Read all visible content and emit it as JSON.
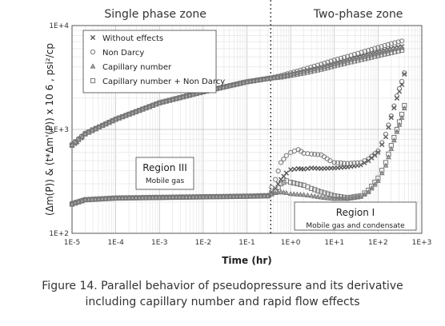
{
  "chart_data": {
    "type": "scatter",
    "xscale": "log",
    "yscale": "log",
    "xlim": [
      1e-05,
      1000
    ],
    "ylim": [
      100,
      10000
    ],
    "xlabel": "Time (hr)",
    "ylabel": "(Δm(P)) & (t*Δm'(P)) x 10 6 , psi²/cp",
    "x_ticks": [
      "1E-5",
      "1E-4",
      "1E-3",
      "1E-2",
      "1E-1",
      "1E+0",
      "1E+1",
      "1E+2",
      "1E+3"
    ],
    "y_ticks": [
      "1E+2",
      "1E+3",
      "1E+4"
    ],
    "grid": true,
    "legend_position": "top-left",
    "divider_x": 0.35,
    "zones": [
      "Single phase zone",
      "Two-phase zone"
    ],
    "annotations": [
      {
        "title": "Region III",
        "text": "Mobile gas"
      },
      {
        "title": "Region I",
        "text": "Mobile gas and condensate"
      }
    ],
    "series": [
      {
        "name": "Without effects",
        "marker": "x",
        "pressure": [
          [
            1e-05,
            700
          ],
          [
            1.3e-05,
            760
          ],
          [
            2e-05,
            900
          ],
          [
            3e-05,
            1000
          ],
          [
            5e-05,
            1090
          ],
          [
            0.0001,
            1250
          ],
          [
            0.0002,
            1400
          ],
          [
            0.0005,
            1620
          ],
          [
            0.001,
            1800
          ],
          [
            0.002,
            1950
          ],
          [
            0.005,
            2150
          ],
          [
            0.01,
            2300
          ],
          [
            0.02,
            2470
          ],
          [
            0.05,
            2700
          ],
          [
            0.1,
            2870
          ],
          [
            0.2,
            3000
          ],
          [
            0.35,
            3120
          ],
          [
            0.6,
            3250
          ],
          [
            1,
            3400
          ],
          [
            2,
            3650
          ],
          [
            5,
            4000
          ],
          [
            10,
            4350
          ],
          [
            20,
            4700
          ],
          [
            50,
            5150
          ],
          [
            100,
            5600
          ],
          [
            200,
            6000
          ],
          [
            350,
            6300
          ]
        ],
        "derivative": [
          [
            1e-05,
            190
          ],
          [
            1.3e-05,
            200
          ],
          [
            2e-05,
            210
          ],
          [
            5e-05,
            215
          ],
          [
            0.0001,
            218
          ],
          [
            0.001,
            222
          ],
          [
            0.01,
            225
          ],
          [
            0.1,
            228
          ],
          [
            0.3,
            230
          ],
          [
            0.45,
            270
          ],
          [
            0.6,
            330
          ],
          [
            0.8,
            380
          ],
          [
            1,
            410
          ],
          [
            1.5,
            420
          ],
          [
            2,
            415
          ],
          [
            3,
            425
          ],
          [
            5,
            420
          ],
          [
            10,
            425
          ],
          [
            20,
            435
          ],
          [
            40,
            455
          ],
          [
            60,
            500
          ],
          [
            100,
            600
          ],
          [
            150,
            850
          ],
          [
            200,
            1300
          ],
          [
            270,
            2000
          ],
          [
            350,
            2700
          ],
          [
            400,
            3400
          ]
        ]
      },
      {
        "name": "Non Darcy",
        "marker": "o",
        "pressure": [
          [
            1e-05,
            720
          ],
          [
            2e-05,
            920
          ],
          [
            5e-05,
            1100
          ],
          [
            0.0001,
            1260
          ],
          [
            0.001,
            1810
          ],
          [
            0.01,
            2310
          ],
          [
            0.1,
            2880
          ],
          [
            0.35,
            3130
          ],
          [
            0.6,
            3300
          ],
          [
            1,
            3500
          ],
          [
            2,
            3800
          ],
          [
            5,
            4250
          ],
          [
            10,
            4650
          ],
          [
            20,
            5050
          ],
          [
            50,
            5650
          ],
          [
            100,
            6150
          ],
          [
            200,
            6700
          ],
          [
            350,
            7100
          ]
        ],
        "derivative": [
          [
            1e-05,
            195
          ],
          [
            2e-05,
            212
          ],
          [
            0.0001,
            220
          ],
          [
            0.001,
            223
          ],
          [
            0.01,
            226
          ],
          [
            0.1,
            229
          ],
          [
            0.3,
            232
          ],
          [
            0.45,
            330
          ],
          [
            0.6,
            480
          ],
          [
            0.8,
            560
          ],
          [
            1,
            600
          ],
          [
            1.5,
            640
          ],
          [
            2,
            590
          ],
          [
            3,
            580
          ],
          [
            5,
            570
          ],
          [
            8,
            500
          ],
          [
            10,
            480
          ],
          [
            20,
            470
          ],
          [
            40,
            480
          ],
          [
            60,
            520
          ],
          [
            100,
            620
          ],
          [
            150,
            900
          ],
          [
            200,
            1350
          ],
          [
            270,
            2100
          ],
          [
            350,
            2900
          ],
          [
            400,
            3500
          ]
        ]
      },
      {
        "name": "Capillary number",
        "marker": "triangle",
        "pressure": [
          [
            1e-05,
            710
          ],
          [
            2e-05,
            910
          ],
          [
            5e-05,
            1095
          ],
          [
            0.0001,
            1255
          ],
          [
            0.001,
            1805
          ],
          [
            0.01,
            2305
          ],
          [
            0.1,
            2875
          ],
          [
            0.35,
            3125
          ],
          [
            0.6,
            3240
          ],
          [
            1,
            3380
          ],
          [
            2,
            3600
          ],
          [
            5,
            3920
          ],
          [
            10,
            4250
          ],
          [
            20,
            4580
          ],
          [
            50,
            5000
          ],
          [
            100,
            5400
          ],
          [
            200,
            5800
          ],
          [
            350,
            6100
          ]
        ],
        "derivative": [
          [
            1e-05,
            192
          ],
          [
            2e-05,
            211
          ],
          [
            0.0001,
            219
          ],
          [
            0.001,
            222
          ],
          [
            0.01,
            225
          ],
          [
            0.1,
            228
          ],
          [
            0.3,
            230
          ],
          [
            0.45,
            245
          ],
          [
            0.6,
            250
          ],
          [
            0.8,
            245
          ],
          [
            1,
            240
          ],
          [
            2,
            235
          ],
          [
            3,
            230
          ],
          [
            5,
            222
          ],
          [
            10,
            215
          ],
          [
            20,
            215
          ],
          [
            40,
            225
          ],
          [
            60,
            250
          ],
          [
            100,
            320
          ],
          [
            150,
            450
          ],
          [
            200,
            650
          ],
          [
            270,
            950
          ],
          [
            350,
            1300
          ],
          [
            400,
            1600
          ]
        ]
      },
      {
        "name": "Capillary number + Non Darcy",
        "marker": "square",
        "pressure": [
          [
            1e-05,
            705
          ],
          [
            2e-05,
            905
          ],
          [
            5e-05,
            1092
          ],
          [
            0.0001,
            1252
          ],
          [
            0.001,
            1802
          ],
          [
            0.01,
            2302
          ],
          [
            0.1,
            2872
          ],
          [
            0.35,
            3122
          ],
          [
            0.6,
            3200
          ],
          [
            1,
            3320
          ],
          [
            2,
            3500
          ],
          [
            5,
            3800
          ],
          [
            10,
            4100
          ],
          [
            20,
            4400
          ],
          [
            50,
            4800
          ],
          [
            100,
            5150
          ],
          [
            200,
            5500
          ],
          [
            350,
            5800
          ]
        ],
        "derivative": [
          [
            1e-05,
            191
          ],
          [
            2e-05,
            210
          ],
          [
            0.0001,
            218
          ],
          [
            0.001,
            221
          ],
          [
            0.01,
            224
          ],
          [
            0.1,
            227
          ],
          [
            0.3,
            229
          ],
          [
            0.45,
            255
          ],
          [
            0.6,
            300
          ],
          [
            0.8,
            320
          ],
          [
            1,
            310
          ],
          [
            2,
            290
          ],
          [
            3,
            270
          ],
          [
            5,
            250
          ],
          [
            10,
            230
          ],
          [
            20,
            220
          ],
          [
            40,
            230
          ],
          [
            60,
            260
          ],
          [
            100,
            340
          ],
          [
            150,
            480
          ],
          [
            200,
            700
          ],
          [
            270,
            1000
          ],
          [
            350,
            1400
          ],
          [
            400,
            1700
          ]
        ]
      }
    ]
  },
  "caption": {
    "line1": "Figure 14. Parallel behavior of pseudopressure and its derivative",
    "line2": "including capillary number and rapid flow effects"
  }
}
